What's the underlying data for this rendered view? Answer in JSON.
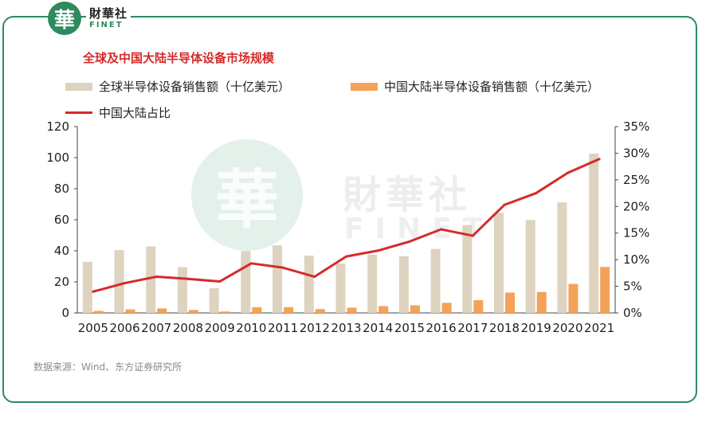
{
  "brand": {
    "logo_glyph": "華",
    "name_cn": "財華社",
    "name_en": "FINET"
  },
  "watermark": {
    "glyph": "華",
    "name_cn": "財華社",
    "name_en": "FINET"
  },
  "source_note": "数据来源：Wind、东方证券研究所",
  "colors": {
    "global_bar": "#ddd3bf",
    "china_bar": "#f4a25a",
    "share_line": "#d62a2a",
    "frame": "#2f8a5e"
  },
  "chart_data": {
    "type": "bar",
    "title": "全球及中国大陆半导体设备市场规模",
    "categories": [
      "2005",
      "2006",
      "2007",
      "2008",
      "2009",
      "2010",
      "2011",
      "2012",
      "2013",
      "2014",
      "2015",
      "2016",
      "2017",
      "2018",
      "2019",
      "2020",
      "2021"
    ],
    "series": [
      {
        "name": "全球半导体设备销售额（十亿美元）",
        "type": "bar",
        "axis": "left",
        "values": [
          32.9,
          40.5,
          42.8,
          29.5,
          15.9,
          39.9,
          43.5,
          36.9,
          31.8,
          37.5,
          36.5,
          41.2,
          56.6,
          64.5,
          59.8,
          71.2,
          102.6
        ]
      },
      {
        "name": "中国大陆半导体设备销售额（十亿美元）",
        "type": "bar",
        "axis": "left",
        "values": [
          1.3,
          2.3,
          2.9,
          1.9,
          0.9,
          3.7,
          3.7,
          2.5,
          3.4,
          4.4,
          4.9,
          6.5,
          8.2,
          13.1,
          13.5,
          18.7,
          29.6
        ]
      },
      {
        "name": "中国大陆占比",
        "type": "line",
        "axis": "right",
        "values": [
          4.0,
          5.6,
          6.8,
          6.4,
          5.9,
          9.3,
          8.5,
          6.8,
          10.6,
          11.7,
          13.4,
          15.7,
          14.5,
          20.3,
          22.5,
          26.3,
          28.9
        ]
      }
    ],
    "y_left": {
      "min": 0,
      "max": 120,
      "ticks": [
        "0",
        "20",
        "40",
        "60",
        "80",
        "100",
        "120"
      ]
    },
    "y_right": {
      "min": 0,
      "max": 35,
      "ticks": [
        "0%",
        "5%",
        "10%",
        "15%",
        "20%",
        "25%",
        "30%",
        "35%"
      ]
    },
    "legend_position": "top-left",
    "grid": false
  }
}
